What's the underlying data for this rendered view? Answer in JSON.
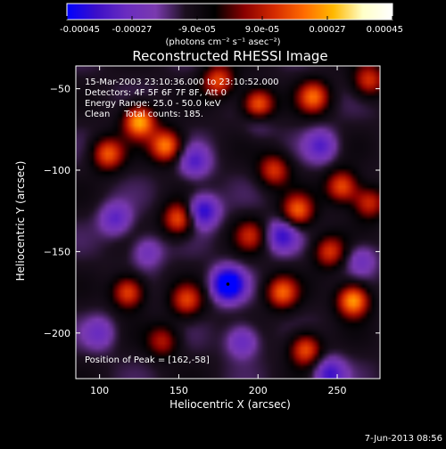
{
  "chart_data": {
    "type": "heatmap",
    "title": "Reconstructed RHESSI Image",
    "xlabel": "Heliocentric X (arcsec)",
    "ylabel": "Heliocentric Y (arcsec)",
    "xlim": [
      85,
      277
    ],
    "ylim": [
      -228,
      -36
    ],
    "x_ticks": [
      100,
      150,
      200,
      250
    ],
    "y_ticks": [
      -50,
      -100,
      -150,
      -200
    ],
    "colorbar": {
      "min": -0.00045,
      "max": 0.00045,
      "tick_values": [
        -0.00045,
        -0.00027,
        -9e-05,
        9e-05,
        0.00027,
        0.00045
      ],
      "tick_labels": [
        "-0.00045",
        "-0.00027",
        "-9.0e-05",
        "9.0e-05",
        "0.00027",
        "0.00045"
      ],
      "unit_label": "(photons cm⁻² s⁻¹ asec⁻²)",
      "colormap": [
        "#0000ff",
        "#3c0fc8",
        "#6a2cc0",
        "#7a3aaf",
        "#1b0f1e",
        "#000000",
        "#8a0000",
        "#d42a00",
        "#ff6a00",
        "#ffb800",
        "#ffffc8",
        "#ffffff"
      ]
    },
    "info_lines": [
      "15-Mar-2003 23:10:36.000 to 23:10:52.000",
      "Detectors: 4F 5F 6F 7F 8F, Att 0",
      "Energy Range: 25.0 - 50.0 keV",
      "Clean     Total counts: 185."
    ],
    "peak_label": "Position of Peak = [162,-58]",
    "peak": {
      "x": 162,
      "y": -58
    },
    "min_marker": {
      "x": 181,
      "y": -170
    },
    "sources": [
      {
        "x": 125,
        "y": -70,
        "amp": 0.0004
      },
      {
        "x": 105,
        "y": -90,
        "amp": 0.0003
      },
      {
        "x": 142,
        "y": -85,
        "amp": 0.00035
      },
      {
        "x": 150,
        "y": -130,
        "amp": 0.0003
      },
      {
        "x": 175,
        "y": -45,
        "amp": 0.00028
      },
      {
        "x": 200,
        "y": -60,
        "amp": 0.00035
      },
      {
        "x": 235,
        "y": -55,
        "amp": 0.0003
      },
      {
        "x": 210,
        "y": -100,
        "amp": 0.00025
      },
      {
        "x": 225,
        "y": -125,
        "amp": 0.0003
      },
      {
        "x": 253,
        "y": -110,
        "amp": 0.0003
      },
      {
        "x": 270,
        "y": -120,
        "amp": 0.00025
      },
      {
        "x": 195,
        "y": -140,
        "amp": 0.0002
      },
      {
        "x": 245,
        "y": -150,
        "amp": 0.00025
      },
      {
        "x": 118,
        "y": -175,
        "amp": 0.0003
      },
      {
        "x": 155,
        "y": -180,
        "amp": 0.00025
      },
      {
        "x": 215,
        "y": -175,
        "amp": 0.0003
      },
      {
        "x": 260,
        "y": -180,
        "amp": 0.0004
      },
      {
        "x": 140,
        "y": -205,
        "amp": 0.0002
      },
      {
        "x": 230,
        "y": -210,
        "amp": 0.0003
      },
      {
        "x": 270,
        "y": -45,
        "amp": 0.00025
      },
      {
        "x": 181,
        "y": -170,
        "amp": -0.00045
      },
      {
        "x": 165,
        "y": -125,
        "amp": -0.0003
      },
      {
        "x": 215,
        "y": -140,
        "amp": -0.00025
      },
      {
        "x": 110,
        "y": -130,
        "amp": -0.0002
      },
      {
        "x": 245,
        "y": -225,
        "amp": -0.00025
      },
      {
        "x": 190,
        "y": -205,
        "amp": -0.0002
      },
      {
        "x": 130,
        "y": -150,
        "amp": -0.00015
      },
      {
        "x": 160,
        "y": -95,
        "amp": -0.0002
      },
      {
        "x": 240,
        "y": -85,
        "amp": -0.0002
      },
      {
        "x": 265,
        "y": -155,
        "amp": -0.00015
      },
      {
        "x": 100,
        "y": -200,
        "amp": -0.00015
      },
      {
        "x": 200,
        "y": -70,
        "amp": -0.0001
      }
    ],
    "source_sigma_arcsec": 7
  },
  "footer": {
    "date": "7-Jun-2013 08:56"
  }
}
